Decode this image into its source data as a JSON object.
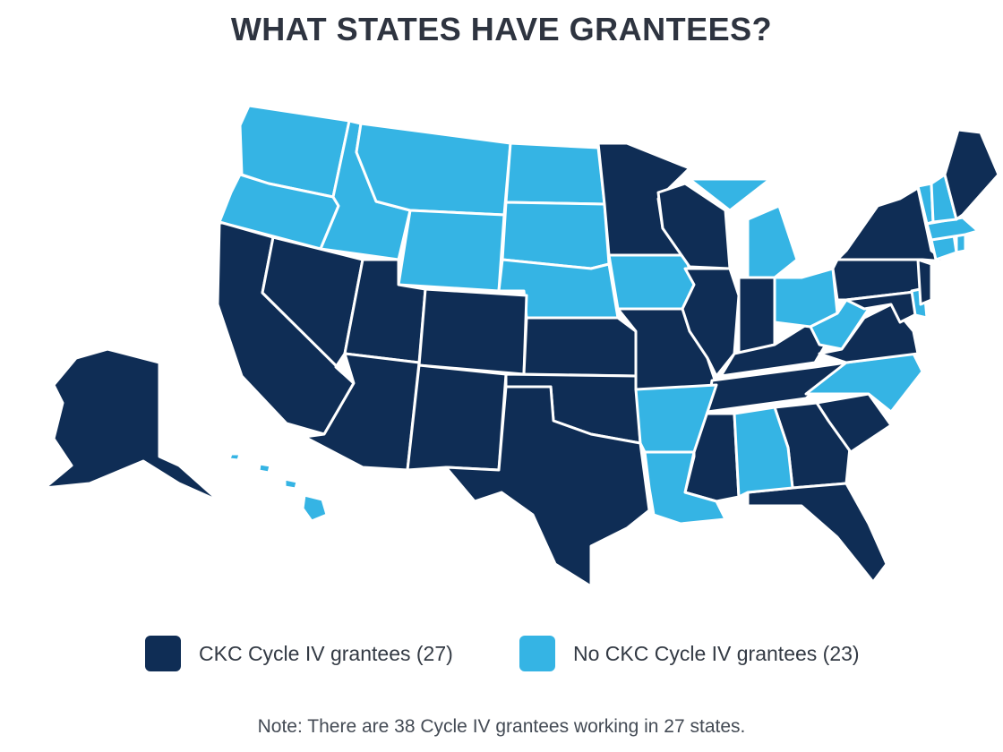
{
  "title": "WHAT STATES HAVE GRANTEES?",
  "colors": {
    "grantee": "#0f2d55",
    "no_grantee": "#35b4e4",
    "border": "#ffffff"
  },
  "legend": [
    {
      "label": "CKC Cycle IV grantees (27)",
      "color_key": "grantee"
    },
    {
      "label": "No CKC Cycle IV grantees (23)",
      "color_key": "no_grantee"
    }
  ],
  "note": "Note: There are 38 Cycle IV grantees working in 27 states.",
  "states": {
    "grantee": [
      "AK",
      "CA",
      "NV",
      "UT",
      "AZ",
      "CO",
      "NM",
      "TX",
      "KS",
      "OK",
      "MN",
      "WI",
      "MO",
      "IL",
      "IN",
      "KY",
      "TN",
      "MS",
      "GA",
      "FL",
      "SC",
      "VA",
      "MD",
      "PA",
      "NY",
      "NJ",
      "ME"
    ],
    "no_grantee": [
      "WA",
      "OR",
      "ID",
      "MT",
      "WY",
      "ND",
      "SD",
      "NE",
      "IA",
      "MI",
      "OH",
      "WV",
      "NC",
      "AR",
      "LA",
      "AL",
      "VT",
      "NH",
      "MA",
      "CT",
      "RI",
      "DE",
      "HI"
    ]
  }
}
